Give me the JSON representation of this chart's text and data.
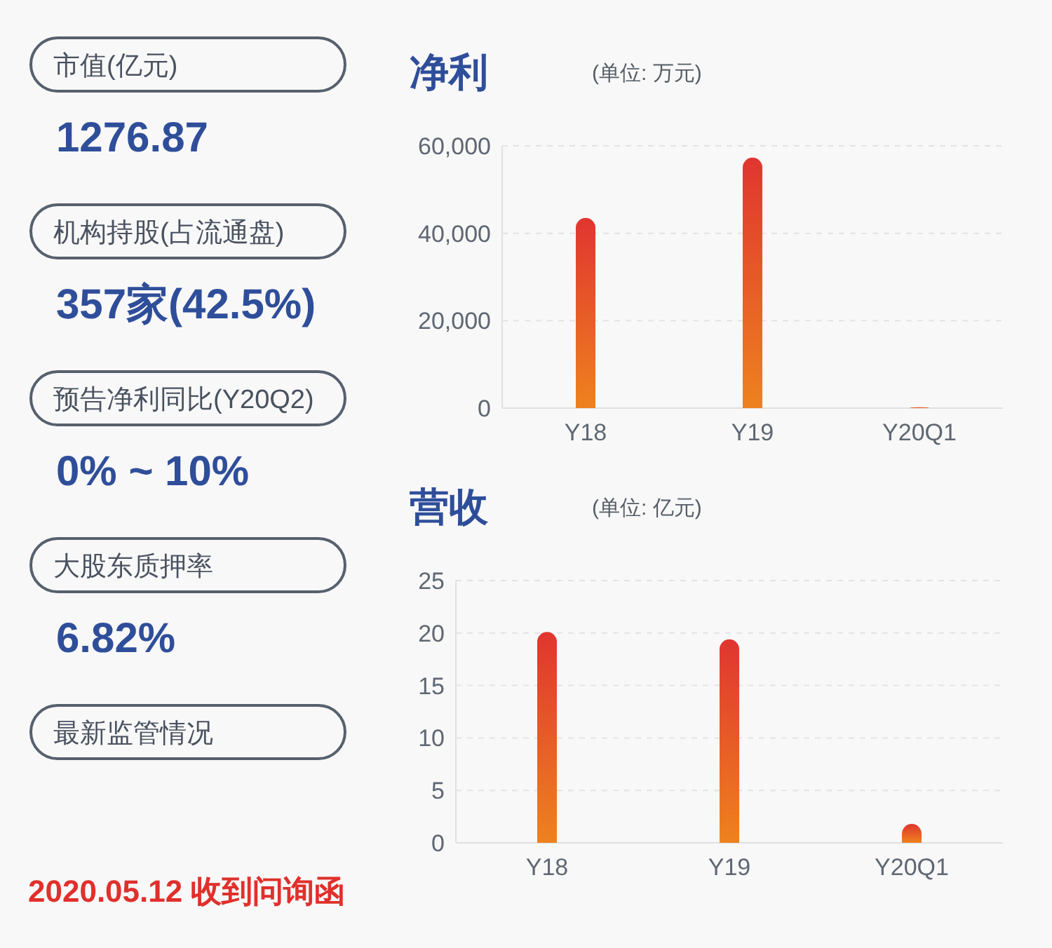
{
  "chart_data": [
    {
      "type": "other",
      "annotations": [
        "市值(亿元)",
        "1276.87",
        "机构持股(占流通盘)",
        "357家(42.5%)",
        "预告净利同比(Y20Q2)",
        "0% ~ 10%",
        "大股东质押率",
        "6.82%",
        "最新监管情况",
        "2020.05.12 收到问询函"
      ]
    },
    {
      "type": "bar",
      "title": "净利",
      "subtitle": "(单位: 万元)",
      "categories": [
        "Y18",
        "Y19",
        "Y20Q1"
      ],
      "values": [
        43500,
        57300,
        200
      ],
      "color": "#e03530",
      "ylim": [
        0,
        60000
      ],
      "yticks": [
        {
          "value": 0,
          "label": "0"
        },
        {
          "value": 20000,
          "label": "20,000"
        },
        {
          "value": 40000,
          "label": "40,000"
        },
        {
          "value": 60000,
          "label": "60,000"
        }
      ],
      "grid": "y"
    },
    {
      "type": "bar",
      "title": "营收",
      "subtitle": "(单位: 亿元)",
      "categories": [
        "Y18",
        "Y19",
        "Y20Q1"
      ],
      "values": [
        20.1,
        19.4,
        1.8
      ],
      "color": "#e03530",
      "ylim": [
        0,
        25
      ],
      "yticks": [
        0,
        5,
        10,
        15,
        20,
        25
      ],
      "grid": "y"
    }
  ]
}
